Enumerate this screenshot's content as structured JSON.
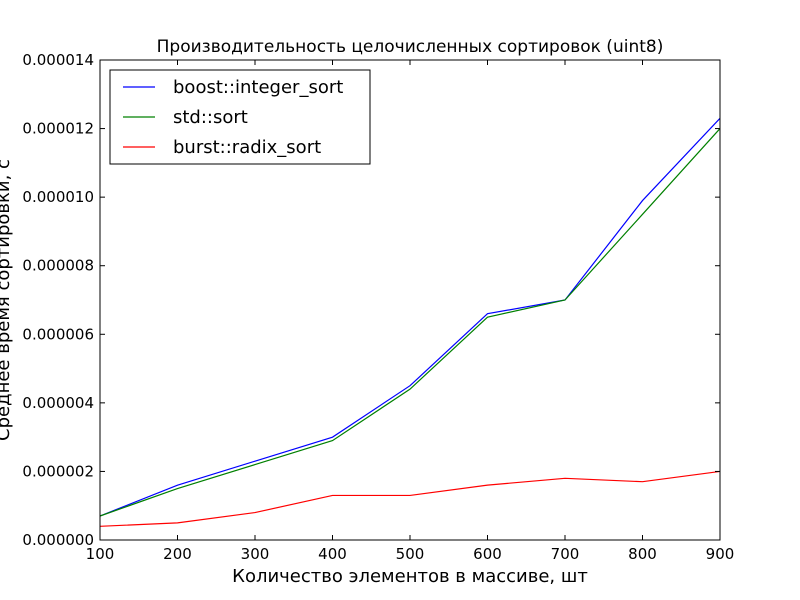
{
  "chart_data": {
    "type": "line",
    "title": "Производительность целочисленных сортировок (uint8)",
    "xlabel": "Количество элементов в массиве, шт",
    "ylabel": "Среднее время сортировки, с",
    "x": [
      100,
      200,
      300,
      400,
      500,
      600,
      700,
      800,
      900
    ],
    "xlim": [
      100,
      900
    ],
    "ylim": [
      0,
      1.4e-05
    ],
    "xticks": [
      "100",
      "200",
      "300",
      "400",
      "500",
      "600",
      "700",
      "800",
      "900"
    ],
    "yticks": [
      "0.000000",
      "0.000002",
      "0.000004",
      "0.000006",
      "0.000008",
      "0.000010",
      "0.000012",
      "0.000014"
    ],
    "grid": false,
    "legend_position": "top-left",
    "series": [
      {
        "name": "boost::integer_sort",
        "color": "#0000ff",
        "values": [
          7e-07,
          1.6e-06,
          2.3e-06,
          3e-06,
          4.5e-06,
          6.6e-06,
          7e-06,
          9.9e-06,
          1.23e-05
        ]
      },
      {
        "name": "std::sort",
        "color": "#008000",
        "values": [
          7e-07,
          1.5e-06,
          2.2e-06,
          2.9e-06,
          4.4e-06,
          6.5e-06,
          7e-06,
          9.5e-06,
          1.2e-05
        ]
      },
      {
        "name": "burst::radix_sort",
        "color": "#ff0000",
        "values": [
          4e-07,
          5e-07,
          8e-07,
          1.3e-06,
          1.3e-06,
          1.6e-06,
          1.8e-06,
          1.7e-06,
          2e-06
        ]
      }
    ]
  }
}
